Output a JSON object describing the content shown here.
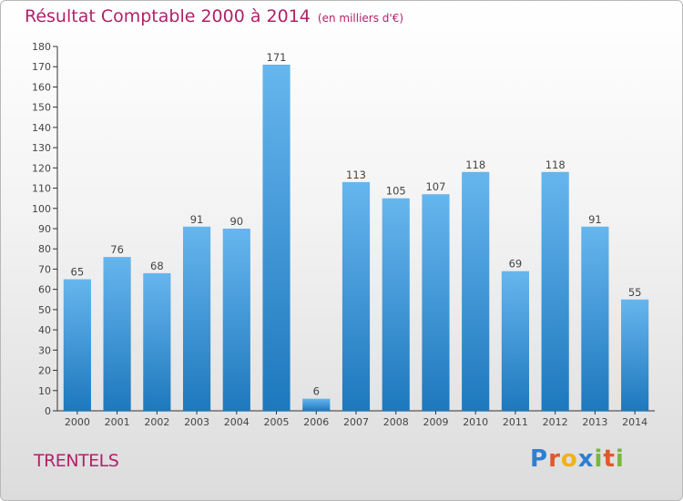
{
  "header": {
    "title": "Résultat Comptable 2000 à 2014",
    "subtitle": "(en milliers d'€)"
  },
  "footer": {
    "place": "TRENTELS",
    "logo_text": "Proxiti",
    "logo_letters": [
      {
        "ch": "P",
        "color": "#2f7fd0"
      },
      {
        "ch": "r",
        "color": "#e0592a"
      },
      {
        "ch": "o",
        "color": "#f0b21a"
      },
      {
        "ch": "x",
        "color": "#2f7fd0"
      },
      {
        "ch": "i",
        "color": "#78b73a"
      },
      {
        "ch": "t",
        "color": "#e0592a"
      },
      {
        "ch": "i",
        "color": "#78b73a"
      }
    ]
  },
  "colors": {
    "title": "#b0226a",
    "bar_light": "#66b6ee",
    "bar_dark": "#1e78bd"
  },
  "chart_data": {
    "type": "bar",
    "title": "Résultat Comptable 2000 à 2014",
    "subtitle": "(en milliers d'€)",
    "xlabel": "",
    "ylabel": "",
    "categories": [
      "2000",
      "2001",
      "2002",
      "2003",
      "2004",
      "2005",
      "2006",
      "2007",
      "2008",
      "2009",
      "2010",
      "2011",
      "2012",
      "2013",
      "2014"
    ],
    "values": [
      65,
      76,
      68,
      91,
      90,
      171,
      6,
      113,
      105,
      107,
      118,
      69,
      118,
      91,
      55
    ],
    "ylim": [
      0,
      180
    ],
    "yticks": [
      0,
      10,
      20,
      30,
      40,
      50,
      60,
      70,
      80,
      90,
      100,
      110,
      120,
      130,
      140,
      150,
      160,
      170,
      180
    ],
    "grid": false,
    "legend": "none"
  }
}
